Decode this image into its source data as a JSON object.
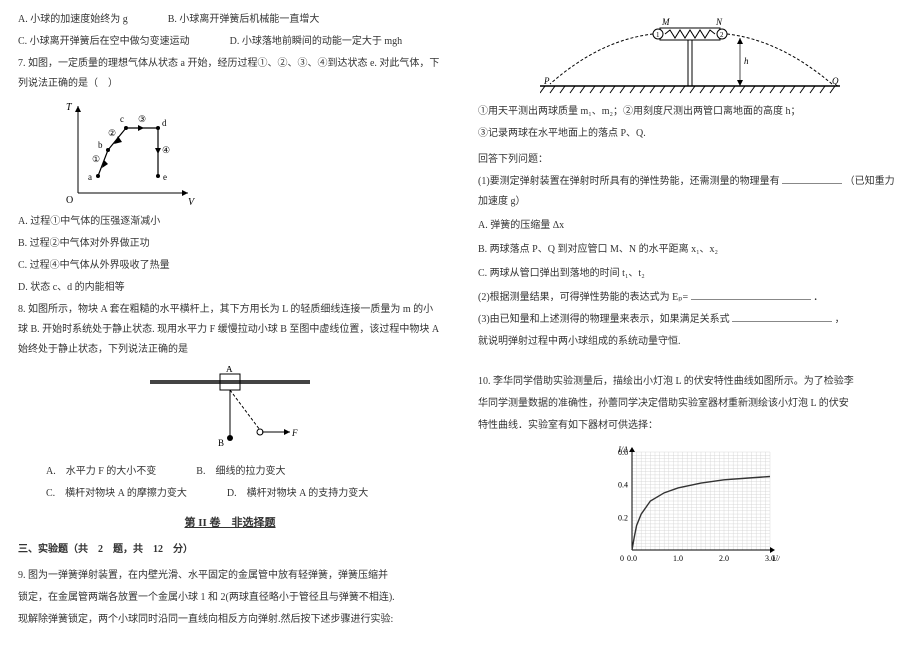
{
  "left": {
    "q6": {
      "optA": "A. 小球的加速度始终为 g",
      "optB": "B. 小球离开弹簧后机械能一直增大",
      "optC": "C. 小球离开弹簧后在空中做匀变速运动",
      "optD": "D. 小球落地前瞬间的动能一定大于 mgh"
    },
    "q7": {
      "stem": "7. 如图，一定质量的理想气体从状态 a 开始，经历过程①、②、③、④到达状态 e. 对此气体，下列说法正确的是（　）",
      "optA": "A. 过程①中气体的压强逐渐减小",
      "optB": "B. 过程②中气体对外界做正功",
      "optC": "C. 过程④中气体从外界吸收了热量",
      "optD": "D. 状态 c、d 的内能相等",
      "diagram": {
        "axis_x": "V",
        "axis_y": "T",
        "points": [
          "a",
          "b",
          "c",
          "d",
          "e"
        ],
        "circled": [
          "①",
          "②",
          "③",
          "④"
        ],
        "origin": "O"
      }
    },
    "q8": {
      "stem": "8. 如图所示，物块 A 套在粗糙的水平横杆上，其下方用长为 L 的轻质细线连接一质量为 m 的小球 B. 开始时系统处于静止状态. 现用水平力 F 缓慢拉动小球 B 至图中虚线位置，该过程中物块 A 始终处于静止状态，下列说法正确的是",
      "optA": "A.　水平力 F 的大小不变",
      "optB": "B.　细线的拉力变大",
      "optC": "C.　横杆对物块 A 的摩擦力变大",
      "optD": "D.　横杆对物块 A 的支持力变大",
      "diagram": {
        "labels": [
          "A",
          "B",
          "F"
        ]
      }
    },
    "section2_title": "第 II 卷　非选择题",
    "exp_header": "三、实验题（共　2　题，共　12　分）",
    "q9": {
      "stem1": "9. 图为一弹簧弹射装置，在内壁光滑、水平固定的金属管中放有轻弹簧，弹簧压缩并",
      "stem2": "锁定，在金属管两端各放置一个金属小球 1 和 2(两球直径略小于管径且与弹簧不相连).",
      "stem3": "现解除弹簧锁定，两个小球同时沿同一直线向相反方向弹射.然后按下述步骤进行实验:"
    }
  },
  "right": {
    "spring_diagram": {
      "labels": [
        "M",
        "N",
        "P",
        "Q",
        "h",
        "1",
        "2"
      ]
    },
    "steps": {
      "s1": "①用天平测出两球质量 m₁、m₂；②用刻度尺测出两管口离地面的高度 h；",
      "s2": "③记录两球在水平地面上的落点 P、Q."
    },
    "answerIntro": "回答下列问题：",
    "sub1": "(1)要测定弹射装置在弹射时所具有的弹性势能，还需测量的物理量有",
    "sub1_tail": "（已知重力加速度 g）",
    "choiceA": "A. 弹簧的压缩量 Δx",
    "choiceB": "B. 两球落点 P、Q 到对应管口 M、N 的水平距离 x₁、x₂",
    "choiceC": "C. 两球从管口弹出到落地的时间 t₁、t₂",
    "sub2": "(2)根据测量结果，可得弹性势能的表达式为 Eₚ=",
    "sub2_tail": "．",
    "sub3a": "(3)由已知量和上述测得的物理量来表示，如果满足关系式",
    "sub3_tail": "，",
    "sub3b": "就说明弹射过程中两小球组成的系统动量守恒.",
    "q10": {
      "stem1": "10. 李华同学借助实验测量后，描绘出小灯泡 L 的伏安特性曲线如图所示。为了检验李",
      "stem2": "华同学测量数据的准确性，孙蕾同学决定借助实验室器材重新测绘该小灯泡 L 的伏安",
      "stem3": "特性曲线．实验室有如下器材可供选择：",
      "chart": {
        "type": "line",
        "x_label": "U/V",
        "y_label": "I/A",
        "xlim": [
          0,
          3.0
        ],
        "ylim": [
          0,
          0.6
        ],
        "xticks": [
          0,
          1.0,
          2.0,
          3.0
        ],
        "yticks": [
          0,
          0.2,
          0.4,
          0.6
        ],
        "points": [
          [
            0,
            0
          ],
          [
            0.05,
            0.08
          ],
          [
            0.1,
            0.15
          ],
          [
            0.2,
            0.22
          ],
          [
            0.4,
            0.3
          ],
          [
            0.7,
            0.35
          ],
          [
            1.0,
            0.38
          ],
          [
            1.5,
            0.41
          ],
          [
            2.0,
            0.43
          ],
          [
            2.5,
            0.44
          ],
          [
            3.0,
            0.45
          ]
        ],
        "grid_color": "#d0d0d0",
        "line_color": "#333333",
        "background_color": "#ffffff",
        "label_fontsize": 8
      }
    }
  },
  "colors": {
    "text": "#333333",
    "bg": "#ffffff",
    "axis": "#000000",
    "grid": "#cccccc"
  }
}
